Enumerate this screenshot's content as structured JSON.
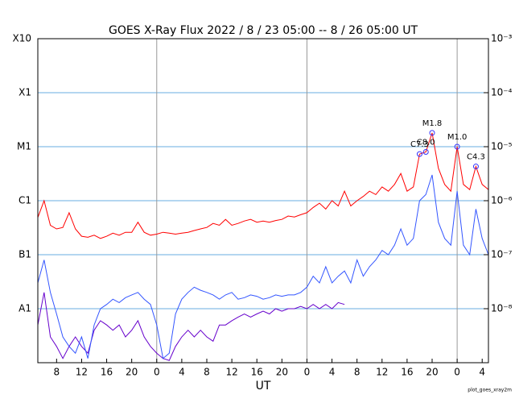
{
  "chart_data": {
    "type": "line",
    "title": "GOES X-Ray Flux   2022 / 8 / 23   05:00 --  8 / 26   05:00   UT",
    "x_label": "UT",
    "footer": "plot_goes_xray2m",
    "log_y": true,
    "xlim": [
      0,
      72
    ],
    "xticks": [
      {
        "value": 3,
        "label": "8"
      },
      {
        "value": 7,
        "label": "12"
      },
      {
        "value": 11,
        "label": "16"
      },
      {
        "value": 15,
        "label": "20"
      },
      {
        "value": 19,
        "label": "0",
        "grid": true
      },
      {
        "value": 23,
        "label": "4"
      },
      {
        "value": 27,
        "label": "8"
      },
      {
        "value": 31,
        "label": "12"
      },
      {
        "value": 35,
        "label": "16"
      },
      {
        "value": 39,
        "label": "20"
      },
      {
        "value": 43,
        "label": "0",
        "grid": true
      },
      {
        "value": 47,
        "label": "4"
      },
      {
        "value": 51,
        "label": "8"
      },
      {
        "value": 55,
        "label": "12"
      },
      {
        "value": 59,
        "label": "16"
      },
      {
        "value": 63,
        "label": "20"
      },
      {
        "value": 67,
        "label": "0",
        "grid": true
      },
      {
        "value": 71,
        "label": "4"
      }
    ],
    "ylim": [
      1e-09,
      0.001
    ],
    "yticks": [
      {
        "value": 0.001,
        "label": "X10"
      },
      {
        "value": 0.0001,
        "label": "X1"
      },
      {
        "value": 1e-05,
        "label": "M1"
      },
      {
        "value": 1e-06,
        "label": "C1"
      },
      {
        "value": 1e-07,
        "label": "B1"
      },
      {
        "value": 1e-08,
        "label": "A1"
      }
    ],
    "y2lim": [
      1e-09,
      0.001
    ],
    "y2ticks": [
      {
        "value": 0.001,
        "label": "10⁻³"
      },
      {
        "value": 0.0001,
        "label": "10⁻⁴"
      },
      {
        "value": 1e-05,
        "label": "10⁻⁵"
      },
      {
        "value": 1e-06,
        "label": "10⁻⁶"
      },
      {
        "value": 1e-07,
        "label": "10⁻⁷"
      },
      {
        "value": 1e-08,
        "label": "10⁻⁸"
      }
    ],
    "grid_color": "#6aaee0",
    "x": [
      0,
      1,
      2,
      3,
      4,
      5,
      6,
      7,
      8,
      9,
      10,
      11,
      12,
      13,
      14,
      15,
      16,
      17,
      18,
      19,
      20,
      21,
      22,
      23,
      24,
      25,
      26,
      27,
      28,
      29,
      30,
      31,
      32,
      33,
      34,
      35,
      36,
      37,
      38,
      39,
      40,
      41,
      42,
      43,
      44,
      45,
      46,
      47,
      48,
      49,
      50,
      51,
      52,
      53,
      54,
      55,
      56,
      57,
      58,
      59,
      60,
      61,
      62,
      63,
      64,
      65,
      66,
      67,
      68,
      69,
      70,
      71,
      72
    ],
    "series": [
      {
        "color": "#6600cc",
        "values": [
          5e-09,
          2e-08,
          3e-09,
          2e-09,
          1.2e-09,
          2e-09,
          3e-09,
          2e-09,
          1.5e-09,
          4e-09,
          6e-09,
          5e-09,
          4e-09,
          5e-09,
          3e-09,
          4e-09,
          6e-09,
          3e-09,
          2e-09,
          1.5e-09,
          1.2e-09,
          1.1e-09,
          2e-09,
          3e-09,
          4e-09,
          3e-09,
          4e-09,
          3e-09,
          2.5e-09,
          5e-09,
          5e-09,
          6e-09,
          7e-09,
          8e-09,
          7e-09,
          8e-09,
          9e-09,
          8e-09,
          1e-08,
          9e-09,
          1e-08,
          1e-08,
          1.1e-08,
          1e-08,
          1.2e-08,
          1e-08,
          1.2e-08,
          1e-08,
          1.3e-08,
          1.2e-08,
          null,
          null,
          null,
          null,
          null,
          null,
          null,
          null,
          null,
          null,
          null,
          null,
          null,
          null,
          null,
          null,
          null,
          null,
          null,
          null,
          null,
          null,
          null
        ]
      },
      {
        "color": "#3355ff",
        "values": [
          3e-08,
          8e-08,
          2e-08,
          8e-09,
          3e-09,
          2e-09,
          1.5e-09,
          3e-09,
          1.2e-09,
          5e-09,
          1e-08,
          1.2e-08,
          1.5e-08,
          1.3e-08,
          1.6e-08,
          1.8e-08,
          2e-08,
          1.5e-08,
          1.2e-08,
          5e-09,
          1.2e-09,
          1.5e-09,
          8e-09,
          1.5e-08,
          2e-08,
          2.5e-08,
          2.2e-08,
          2e-08,
          1.8e-08,
          1.5e-08,
          1.8e-08,
          2e-08,
          1.5e-08,
          1.6e-08,
          1.8e-08,
          1.7e-08,
          1.5e-08,
          1.6e-08,
          1.8e-08,
          1.7e-08,
          1.8e-08,
          1.8e-08,
          2e-08,
          2.5e-08,
          4e-08,
          3e-08,
          6e-08,
          3e-08,
          4e-08,
          5e-08,
          3e-08,
          8e-08,
          4e-08,
          6e-08,
          8e-08,
          1.2e-07,
          1e-07,
          1.5e-07,
          3e-07,
          1.5e-07,
          2e-07,
          1e-06,
          1.3e-06,
          3e-06,
          4e-07,
          2e-07,
          1.5e-07,
          1.5e-06,
          1.5e-07,
          1e-07,
          7e-07,
          2e-07,
          1e-07
        ]
      },
      {
        "color": "#ff0000",
        "values": [
          4.9e-07,
          1e-06,
          3.5e-07,
          3e-07,
          3.2e-07,
          6e-07,
          3e-07,
          2.2e-07,
          2.1e-07,
          2.3e-07,
          2e-07,
          2.2e-07,
          2.5e-07,
          2.3e-07,
          2.6e-07,
          2.6e-07,
          4e-07,
          2.6e-07,
          2.3e-07,
          2.4e-07,
          2.6e-07,
          2.5e-07,
          2.4e-07,
          2.5e-07,
          2.6e-07,
          2.8e-07,
          3e-07,
          3.2e-07,
          3.8e-07,
          3.5e-07,
          4.5e-07,
          3.5e-07,
          3.8e-07,
          4.2e-07,
          4.5e-07,
          4e-07,
          4.2e-07,
          4e-07,
          4.3e-07,
          4.5e-07,
          5.2e-07,
          5e-07,
          5.5e-07,
          6e-07,
          7.5e-07,
          9e-07,
          7e-07,
          1e-06,
          8e-07,
          1.5e-06,
          8e-07,
          1e-06,
          1.2e-06,
          1.5e-06,
          1.3e-06,
          1.8e-06,
          1.5e-06,
          2e-06,
          3.2e-06,
          1.5e-06,
          1.8e-06,
          7.3e-06,
          8e-06,
          1.8e-05,
          4e-06,
          2e-06,
          1.5e-06,
          1e-05,
          2e-06,
          1.6e-06,
          4.3e-06,
          2e-06,
          1.6e-06
        ]
      }
    ],
    "flares": [
      {
        "label": "C7.3",
        "x": 61,
        "y": 7.3e-06
      },
      {
        "label": "C8.0",
        "x": 62,
        "y": 8e-06
      },
      {
        "label": "M1.8",
        "x": 63,
        "y": 1.8e-05
      },
      {
        "label": "M1.0",
        "x": 67,
        "y": 1e-05
      },
      {
        "label": "C4.3",
        "x": 70,
        "y": 4.3e-06
      }
    ]
  }
}
